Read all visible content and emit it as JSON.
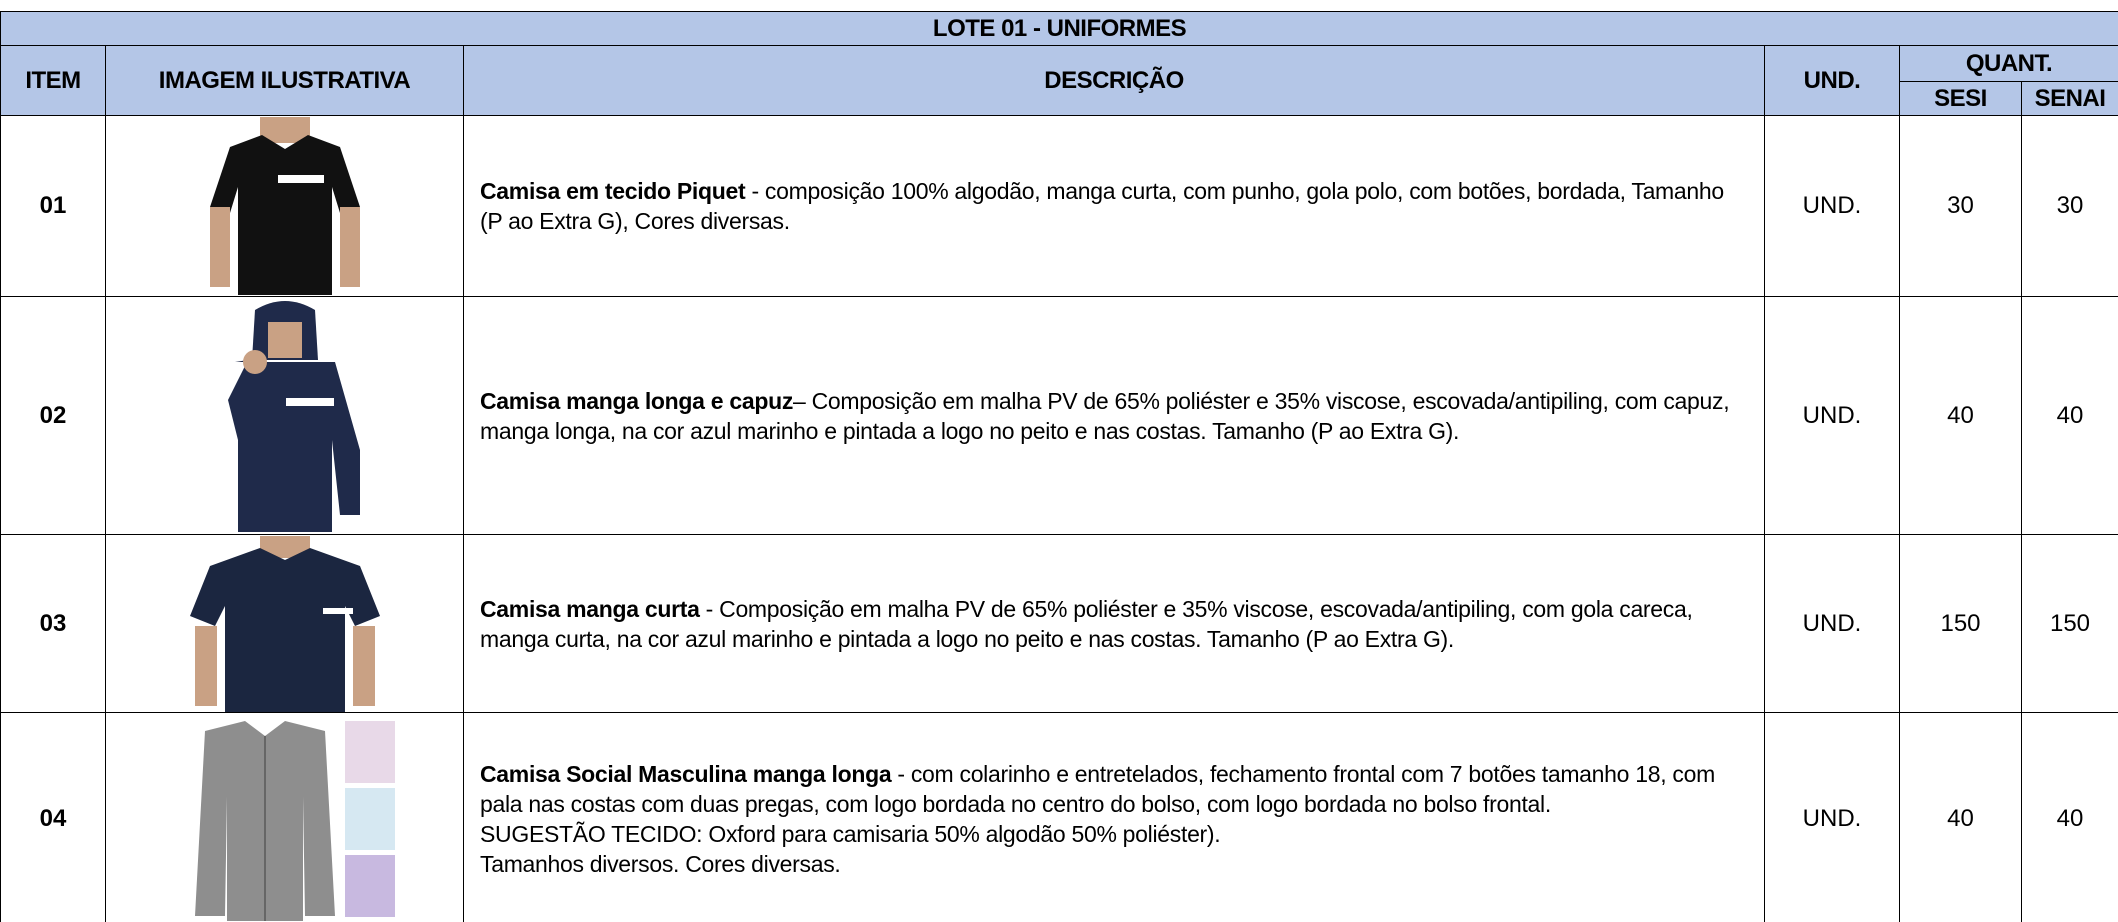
{
  "table": {
    "title": "LOTE 01 - UNIFORMES",
    "headers": {
      "item": "ITEM",
      "image": "IMAGEM ILUSTRATIVA",
      "description": "DESCRIÇÃO",
      "unit": "UND.",
      "quantity": "QUANT.",
      "sesi": "SESI",
      "senai": "SENAI"
    },
    "rows": [
      {
        "item": "01",
        "title": "Camisa em tecido Piquet",
        "text": " - composição 100% algodão, manga curta, com punho, gola polo, com botões, bordada, Tamanho (P ao Extra G), Cores diversas.",
        "extra": [],
        "unit": "UND.",
        "sesi": 30,
        "senai": 30
      },
      {
        "item": "02",
        "title": "Camisa manga longa e capuz",
        "text": "– Composição em malha PV de 65% poliéster e 35% viscose, escovada/antipiling, com capuz, manga longa, na cor azul marinho e pintada a logo no peito e nas costas. Tamanho (P ao Extra G).",
        "extra": [],
        "unit": "UND.",
        "sesi": 40,
        "senai": 40
      },
      {
        "item": "03",
        "title": "Camisa manga curta",
        "text": " - Composição em malha PV de 65% poliéster e 35% viscose, escovada/antipiling, com gola careca, manga curta, na cor azul marinho e pintada a logo no peito e nas costas. Tamanho (P ao Extra G).",
        "extra": [],
        "unit": "UND.",
        "sesi": 150,
        "senai": 150
      },
      {
        "item": "04",
        "title": "Camisa Social Masculina manga longa",
        "text": " - com colarinho e entretelados, fechamento frontal com 7 botões tamanho 18, com pala nas costas com duas pregas, com logo bordada no centro do bolso, com logo bordada no bolso frontal.",
        "extra": [
          "SUGESTÃO TECIDO: Oxford para camisaria 50% algodão 50% poliéster).",
          "Tamanhos diversos. Cores diversas."
        ],
        "unit": "UND.",
        "sesi": 40,
        "senai": 40
      }
    ]
  }
}
